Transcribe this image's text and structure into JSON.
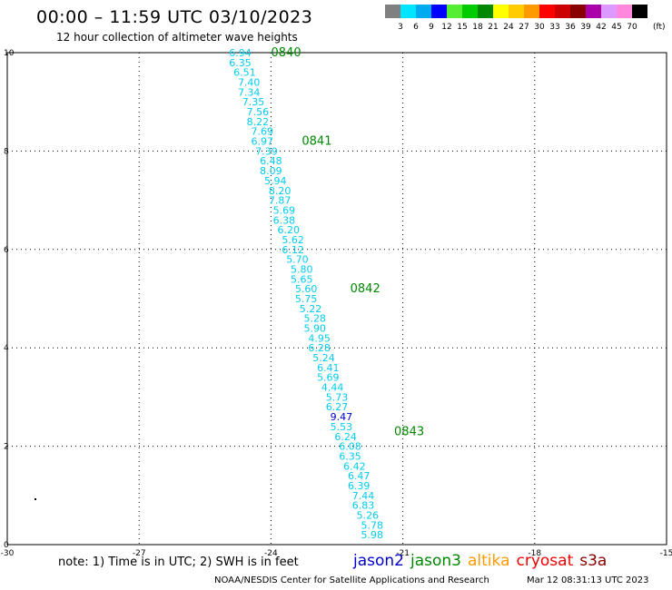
{
  "header": {
    "title": "00:00 – 11:59 UTC 03/10/2023",
    "subtitle": "12 hour collection of altimeter wave heights"
  },
  "color_scale": {
    "unit_label": "(ft)",
    "bins": [
      {
        "label": "3",
        "color": "#808080"
      },
      {
        "label": "6",
        "color": "#00e5ff"
      },
      {
        "label": "9",
        "color": "#00aaee"
      },
      {
        "label": "12",
        "color": "#0000ff"
      },
      {
        "label": "15",
        "color": "#55ee33"
      },
      {
        "label": "18",
        "color": "#00cc00"
      },
      {
        "label": "21",
        "color": "#008800"
      },
      {
        "label": "24",
        "color": "#ffff00"
      },
      {
        "label": "27",
        "color": "#ffcc00"
      },
      {
        "label": "30",
        "color": "#ff9900"
      },
      {
        "label": "33",
        "color": "#ff0000"
      },
      {
        "label": "36",
        "color": "#cc0000"
      },
      {
        "label": "39",
        "color": "#880000"
      },
      {
        "label": "42",
        "color": "#aa00aa"
      },
      {
        "label": "45",
        "color": "#dd99ff"
      },
      {
        "label": "70",
        "color": "#ff88dd"
      },
      {
        "label": "",
        "color": "#000000"
      }
    ]
  },
  "chart_data": {
    "type": "scatter",
    "xlim": [
      -30,
      -15
    ],
    "ylim": [
      0,
      10
    ],
    "x_ticks": [
      "-30",
      "-27",
      "-24",
      "-21",
      "-18",
      "-15"
    ],
    "y_ticks": [
      "0",
      "2",
      "4",
      "6",
      "8",
      "10"
    ],
    "grid": true,
    "points": [
      {
        "x": -24.7,
        "y": 10.0,
        "label": "6.94"
      },
      {
        "x": -24.7,
        "y": 9.8,
        "label": "6.35"
      },
      {
        "x": -24.6,
        "y": 9.6,
        "label": "6.51"
      },
      {
        "x": -24.5,
        "y": 9.4,
        "label": "7.40"
      },
      {
        "x": -24.5,
        "y": 9.2,
        "label": "7.34"
      },
      {
        "x": -24.4,
        "y": 9.0,
        "label": "7.35"
      },
      {
        "x": -24.3,
        "y": 8.8,
        "label": "7.56"
      },
      {
        "x": -24.3,
        "y": 8.6,
        "label": "8.22"
      },
      {
        "x": -24.2,
        "y": 8.4,
        "label": "7.69"
      },
      {
        "x": -24.2,
        "y": 8.2,
        "label": "6.97"
      },
      {
        "x": -24.1,
        "y": 8.0,
        "label": "7.39"
      },
      {
        "x": -24.0,
        "y": 7.8,
        "label": "6.48"
      },
      {
        "x": -24.0,
        "y": 7.6,
        "label": "8.09"
      },
      {
        "x": -23.9,
        "y": 7.4,
        "label": "5.94"
      },
      {
        "x": -23.8,
        "y": 7.2,
        "label": "8.20"
      },
      {
        "x": -23.8,
        "y": 7.0,
        "label": "7.87"
      },
      {
        "x": -23.7,
        "y": 6.8,
        "label": "5.69"
      },
      {
        "x": -23.7,
        "y": 6.6,
        "label": "6.38"
      },
      {
        "x": -23.6,
        "y": 6.4,
        "label": "6.20"
      },
      {
        "x": -23.5,
        "y": 6.2,
        "label": "5.62"
      },
      {
        "x": -23.5,
        "y": 6.0,
        "label": "6.12"
      },
      {
        "x": -23.4,
        "y": 5.8,
        "label": "5.70"
      },
      {
        "x": -23.3,
        "y": 5.6,
        "label": "5.80"
      },
      {
        "x": -23.3,
        "y": 5.4,
        "label": "5.65"
      },
      {
        "x": -23.2,
        "y": 5.2,
        "label": "5.60"
      },
      {
        "x": -23.2,
        "y": 5.0,
        "label": "5.75"
      },
      {
        "x": -23.1,
        "y": 4.8,
        "label": "5.22"
      },
      {
        "x": -23.0,
        "y": 4.6,
        "label": "5.28"
      },
      {
        "x": -23.0,
        "y": 4.4,
        "label": "5.90"
      },
      {
        "x": -22.9,
        "y": 4.2,
        "label": "4.95"
      },
      {
        "x": -22.9,
        "y": 4.0,
        "label": "6.28"
      },
      {
        "x": -22.8,
        "y": 3.8,
        "label": "5.24"
      },
      {
        "x": -22.7,
        "y": 3.6,
        "label": "6.41"
      },
      {
        "x": -22.7,
        "y": 3.4,
        "label": "5.69"
      },
      {
        "x": -22.6,
        "y": 3.2,
        "label": "4.44"
      },
      {
        "x": -22.5,
        "y": 3.0,
        "label": "5.73"
      },
      {
        "x": -22.5,
        "y": 2.8,
        "label": "6.27"
      },
      {
        "x": -22.4,
        "y": 2.6,
        "label": "9.47"
      },
      {
        "x": -22.4,
        "y": 2.4,
        "label": "5.53"
      },
      {
        "x": -22.3,
        "y": 2.2,
        "label": "6.24"
      },
      {
        "x": -22.2,
        "y": 2.0,
        "label": "6.08"
      },
      {
        "x": -22.2,
        "y": 1.8,
        "label": "6.35"
      },
      {
        "x": -22.1,
        "y": 1.6,
        "label": "6.42"
      },
      {
        "x": -22.0,
        "y": 1.4,
        "label": "6.47"
      },
      {
        "x": -22.0,
        "y": 1.2,
        "label": "6.39"
      },
      {
        "x": -21.9,
        "y": 1.0,
        "label": "7.44"
      },
      {
        "x": -21.9,
        "y": 0.8,
        "label": "6.83"
      },
      {
        "x": -21.8,
        "y": 0.6,
        "label": "5.26"
      },
      {
        "x": -21.7,
        "y": 0.4,
        "label": "5.78"
      },
      {
        "x": -21.7,
        "y": 0.2,
        "label": "5.98"
      }
    ],
    "time_labels": [
      {
        "x": -24.7,
        "y": 10.0,
        "label": "0840"
      },
      {
        "x": -24.0,
        "y": 8.2,
        "label": "0841"
      },
      {
        "x": -22.9,
        "y": 5.2,
        "label": "0842"
      },
      {
        "x": -21.9,
        "y": 2.3,
        "label": "0843"
      }
    ],
    "point_color": "#00ccee",
    "time_label_color": "#008800"
  },
  "footer": {
    "note": "note: 1) Time is in UTC; 2) SWH is in feet",
    "missions": [
      {
        "name": "jason2",
        "color": "#0000cc"
      },
      {
        "name": "jason3",
        "color": "#008800"
      },
      {
        "name": "altika",
        "color": "#ff9900"
      },
      {
        "name": "cryosat",
        "color": "#ee0000"
      },
      {
        "name": "s3a",
        "color": "#880000"
      }
    ],
    "credit": "NOAA/NESDIS Center for Satellite Applications and Research",
    "timestamp": "Mar 12 08:31:13 UTC 2023"
  }
}
